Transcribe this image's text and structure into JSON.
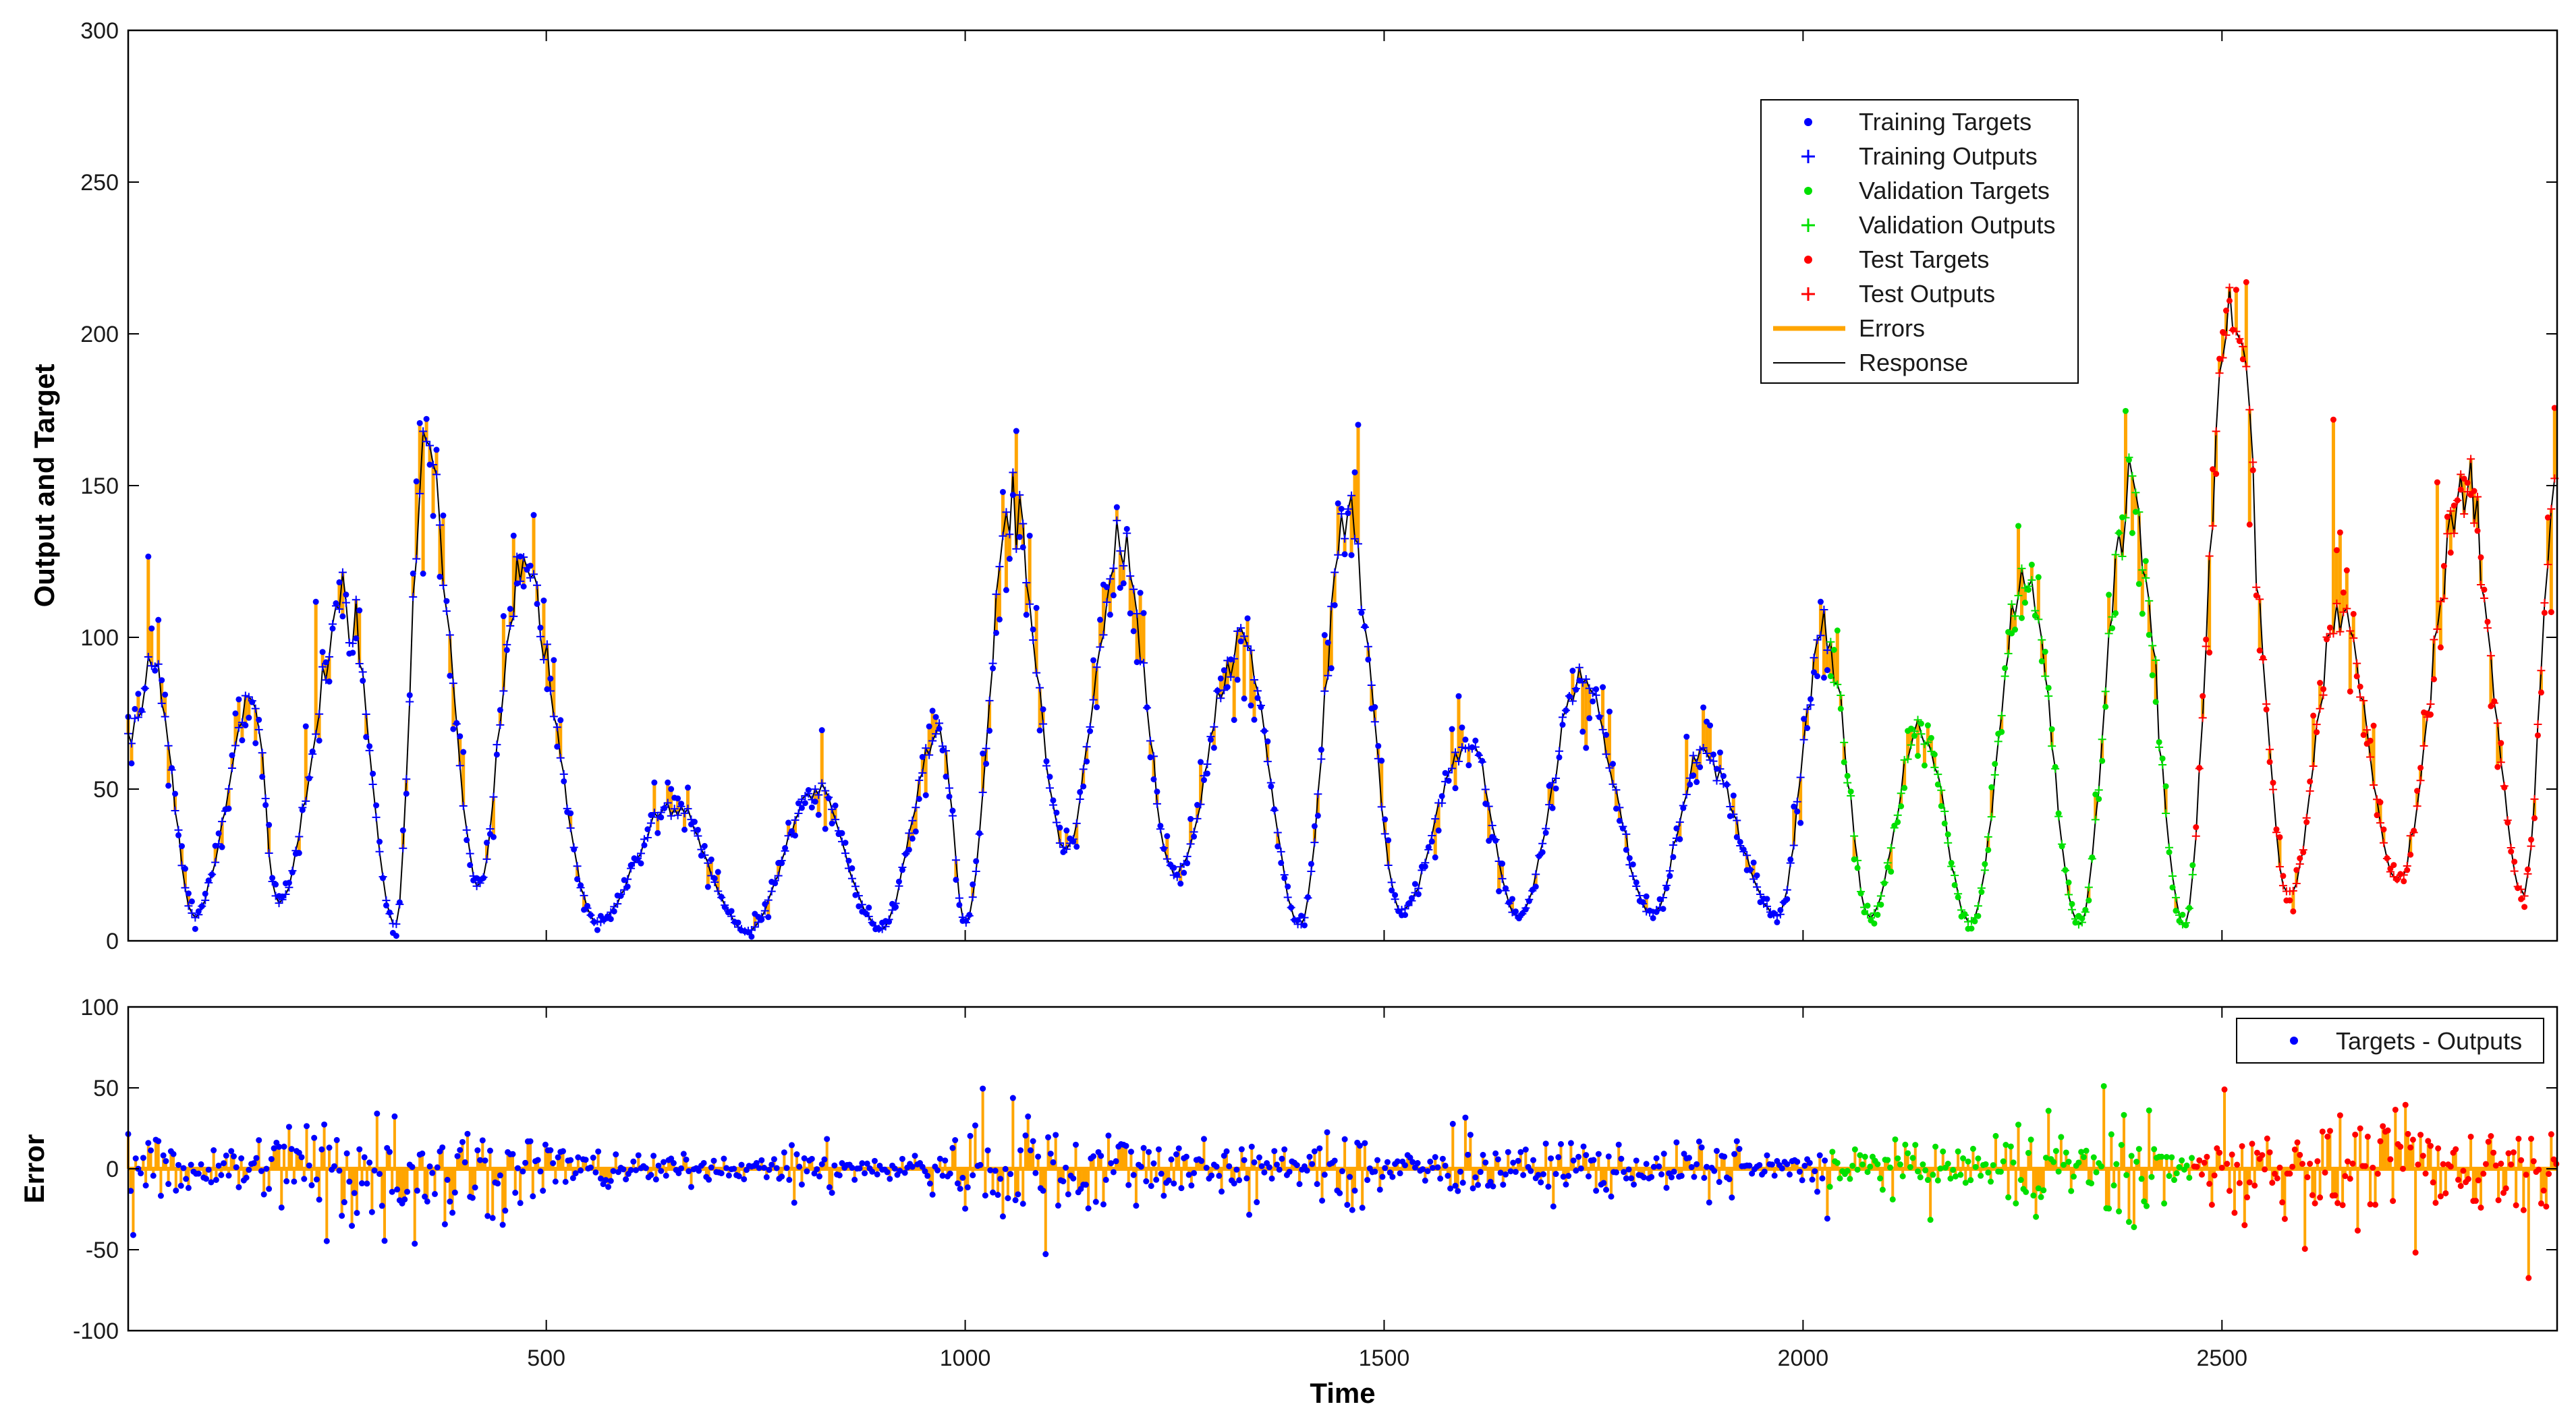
{
  "chart_data": [
    {
      "type": "time-series response",
      "title": "",
      "xlabel": "Time",
      "ylabel": "Output and Target",
      "xlim": [
        1,
        2900
      ],
      "ylim": [
        0,
        300
      ],
      "xticks": [
        500,
        1000,
        1500,
        2000,
        2500
      ],
      "yticks": [
        0,
        50,
        100,
        150,
        200,
        250,
        300
      ],
      "segments": [
        {
          "name": "Training",
          "x_range": [
            1,
            2030
          ],
          "color": "#0000ff"
        },
        {
          "name": "Validation",
          "x_range": [
            2030,
            2465
          ],
          "color": "#00e000"
        },
        {
          "name": "Test",
          "x_range": [
            2465,
            2900
          ],
          "color": "#ff0000"
        }
      ],
      "envelope": {
        "x": [
          1,
          30,
          80,
          150,
          180,
          260,
          320,
          355,
          420,
          470,
          560,
          650,
          740,
          820,
          900,
          970,
          1000,
          1055,
          1120,
          1185,
          1250,
          1330,
          1400,
          1455,
          1520,
          1600,
          1660,
          1735,
          1820,
          1880,
          1970,
          2025,
          2080,
          2140,
          2200,
          2265,
          2330,
          2390,
          2455,
          2510,
          2580,
          2640,
          2710,
          2790,
          2860,
          2900
        ],
        "y": [
          65,
          92,
          8,
          78,
          12,
          112,
          5,
          165,
          18,
          125,
          6,
          45,
          3,
          48,
          4,
          70,
          6,
          142,
          30,
          130,
          22,
          98,
          5,
          140,
          10,
          65,
          8,
          85,
          9,
          62,
          8,
          105,
          8,
          70,
          6,
          120,
          5,
          150,
          5,
          210,
          15,
          110,
          20,
          150,
          15,
          150
        ]
      },
      "legend": {
        "position": "top-right",
        "entries": [
          {
            "label": "Training Targets",
            "marker": "dot",
            "color": "#0000ff"
          },
          {
            "label": "Training Outputs",
            "marker": "plus",
            "color": "#0000ff"
          },
          {
            "label": "Validation Targets",
            "marker": "dot",
            "color": "#00e000"
          },
          {
            "label": "Validation Outputs",
            "marker": "plus",
            "color": "#00e000"
          },
          {
            "label": "Test Targets",
            "marker": "dot",
            "color": "#ff0000"
          },
          {
            "label": "Test Outputs",
            "marker": "plus",
            "color": "#ff0000"
          },
          {
            "label": "Errors",
            "marker": "line",
            "color": "#ffa500"
          },
          {
            "label": "Response",
            "marker": "line",
            "color": "#000000"
          }
        ]
      }
    },
    {
      "type": "error time-series",
      "xlabel": "Time",
      "ylabel": "Error",
      "xlim": [
        1,
        2900
      ],
      "ylim": [
        -100,
        100
      ],
      "xticks": [
        500,
        1000,
        1500,
        2000,
        2500
      ],
      "xticklabels": [
        "500",
        "1000",
        "1500",
        "2000",
        "2500"
      ],
      "yticks": [
        -100,
        -50,
        0,
        50,
        100
      ],
      "amplitude_envelope": {
        "x": [
          1,
          80,
          150,
          250,
          300,
          360,
          420,
          480,
          560,
          650,
          740,
          820,
          900,
          970,
          1050,
          1120,
          1185,
          1250,
          1330,
          1400,
          1455,
          1520,
          1600,
          1660,
          1735,
          1820,
          1880,
          1970,
          2025,
          2100,
          2200,
          2265,
          2330,
          2390,
          2460,
          2520,
          2640,
          2780,
          2900
        ],
        "y": [
          25,
          12,
          18,
          40,
          30,
          40,
          28,
          22,
          10,
          8,
          5,
          15,
          5,
          20,
          35,
          22,
          30,
          14,
          18,
          8,
          25,
          10,
          15,
          10,
          20,
          8,
          18,
          8,
          15,
          15,
          10,
          30,
          12,
          35,
          10,
          28,
          25,
          28,
          28
        ]
      },
      "legend": {
        "position": "top-right",
        "entries": [
          {
            "label": "Targets - Outputs",
            "marker": "dot",
            "color": "#0000ff"
          }
        ]
      }
    }
  ]
}
